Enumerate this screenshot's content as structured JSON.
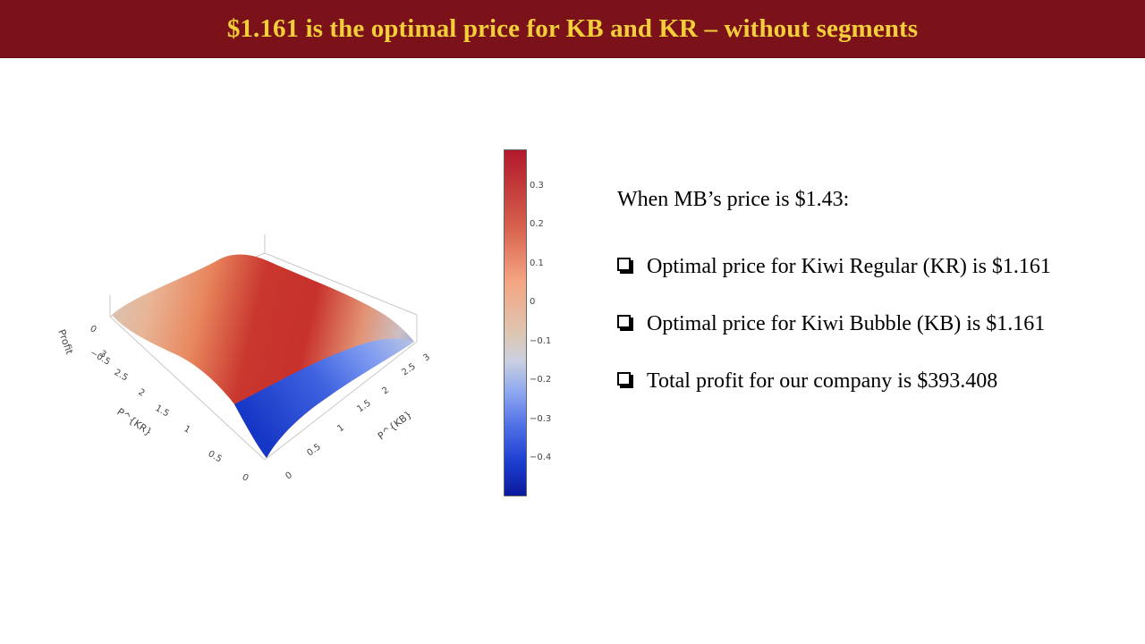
{
  "slide": {
    "title": "$1.161 is the optimal price for KB and KR – without segments"
  },
  "text_panel": {
    "intro": "When MB’s price is $1.43:",
    "bullets": [
      "Optimal price for Kiwi Regular (KR) is $1.161",
      "Optimal price for Kiwi Bubble (KB) is $1.161",
      "Total profit for our company is $393.408"
    ]
  },
  "chart_data": {
    "type": "surface",
    "title": "",
    "xlabel": "P^{KB}",
    "ylabel": "P^{KR}",
    "zlabel": "Profit",
    "x_ticks": [
      "0",
      "0.5",
      "1",
      "1.5",
      "2",
      "2.5",
      "3"
    ],
    "y_ticks": [
      "0",
      "0.5",
      "1",
      "1.5",
      "2",
      "2.5",
      "3"
    ],
    "z_ticks": [
      "0",
      "−0.5"
    ],
    "colorbar": {
      "ticks": [
        "0.3",
        "0.2",
        "0.1",
        "0",
        "−0.1",
        "−0.2",
        "−0.3",
        "−0.4"
      ],
      "range": [
        -0.5,
        0.38
      ],
      "colormap": "RdBu reversed (red high, blue low)"
    },
    "surface_summary": {
      "peak_profit_approx": 0.33,
      "min_profit_approx": -0.5,
      "optimal_KB": 1.161,
      "optimal_KR": 1.161
    }
  }
}
